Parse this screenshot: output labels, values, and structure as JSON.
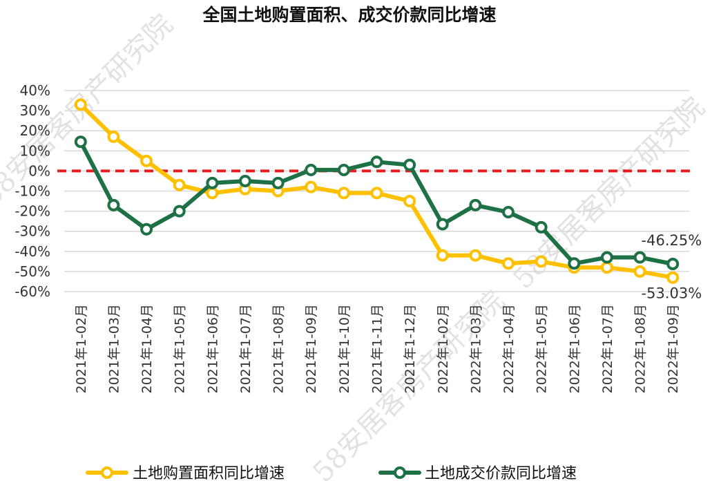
{
  "chart_data": {
    "type": "line",
    "title": "全国土地购置面积、成交价款同比增速",
    "categories": [
      "2021年1-02月",
      "2021年1-03月",
      "2021年1-04月",
      "2021年1-05月",
      "2021年1-06月",
      "2021年1-07月",
      "2021年1-08月",
      "2021年1-09月",
      "2021年1-10月",
      "2021年1-11月",
      "2021年1-12月",
      "2022年1-02月",
      "2022年1-03月",
      "2022年1-04月",
      "2022年1-05月",
      "2022年1-06月",
      "2022年1-07月",
      "2022年1-08月",
      "2022年1-09月"
    ],
    "ylim": [
      -60,
      40
    ],
    "yticks": [
      {
        "value": 40,
        "label": "40%"
      },
      {
        "value": 30,
        "label": "30%"
      },
      {
        "value": 20,
        "label": "20%"
      },
      {
        "value": 10,
        "label": "10%"
      },
      {
        "value": 0,
        "label": "0%"
      },
      {
        "value": -10,
        "label": "-10%"
      },
      {
        "value": -20,
        "label": "-20%"
      },
      {
        "value": -30,
        "label": "-30%"
      },
      {
        "value": -40,
        "label": "-40%"
      },
      {
        "value": -50,
        "label": "-50%"
      },
      {
        "value": -60,
        "label": "-60%"
      }
    ],
    "reference_line": {
      "value": 0,
      "color": "#e81c1c",
      "style": "dashed"
    },
    "series": [
      {
        "name": "土地购置面积同比增速",
        "color": "#ffc000",
        "values": [
          33,
          17,
          5,
          -7,
          -11,
          -9,
          -10,
          -8,
          -11,
          -11,
          -15,
          -42,
          -42,
          -46,
          -45,
          -48,
          -48,
          -50,
          -53.03
        ],
        "last_label": "-53.03%"
      },
      {
        "name": "土地成交价款同比增速",
        "color": "#1e7145",
        "values": [
          14.5,
          -17,
          -29,
          -20,
          -6,
          -5,
          -6,
          0.5,
          0.5,
          4.5,
          3,
          -26.5,
          -17,
          -20.5,
          -28,
          -46,
          -43,
          -43,
          -46.25
        ],
        "last_label": "-46.25%"
      }
    ]
  },
  "watermark": "58安居客房产研究院"
}
